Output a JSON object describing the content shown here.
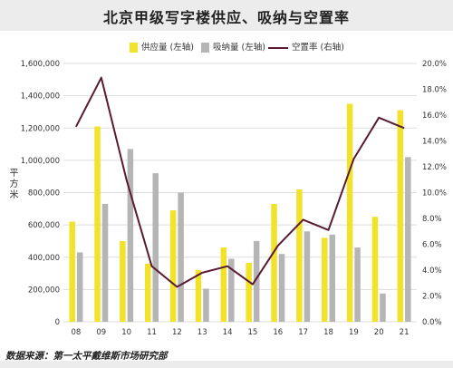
{
  "title": "北京甲级写字楼供应、吸纳与空置率",
  "source": "数据来源：第一太平戴维斯市场研究部",
  "colors": {
    "supply": "#f2e22a",
    "absorption": "#b5b5b5",
    "vacancy": "#5a1a33",
    "grid": "#dddddd",
    "axis_text": "#333333"
  },
  "chart_data": {
    "type": "bar+line",
    "title": "北京甲级写字楼供应、吸纳与空置率",
    "categories": [
      "08",
      "09",
      "10",
      "11",
      "12",
      "13",
      "14",
      "15",
      "16",
      "17",
      "18",
      "19",
      "20",
      "21"
    ],
    "ylabel": "平方米",
    "y_left": {
      "lim": [
        0,
        1600000
      ],
      "ticks": [
        0,
        200000,
        400000,
        600000,
        800000,
        1000000,
        1200000,
        1400000,
        1600000
      ],
      "tick_labels": [
        "0",
        "200,000",
        "400,000",
        "600,000",
        "800,000",
        "1,000,000",
        "1,200,000",
        "1,400,000",
        "1,600,000"
      ]
    },
    "y_right": {
      "lim": [
        0,
        20
      ],
      "ticks": [
        0,
        2,
        4,
        6,
        8,
        10,
        12,
        14,
        16,
        18,
        20
      ],
      "tick_labels": [
        "0.0%",
        "2.0%",
        "4.0%",
        "6.0%",
        "8.0%",
        "10.0%",
        "12.0%",
        "14.0%",
        "16.0%",
        "18.0%",
        "20.0%"
      ]
    },
    "grid": true,
    "legend_position": "top",
    "series": [
      {
        "name": "供应量 (左轴)",
        "kind": "bar",
        "axis": "left",
        "values": [
          620000,
          1210000,
          500000,
          360000,
          690000,
          320000,
          460000,
          365000,
          730000,
          820000,
          520000,
          1350000,
          650000,
          1310000
        ]
      },
      {
        "name": "吸纳量 (左轴)",
        "kind": "bar",
        "axis": "left",
        "values": [
          430000,
          730000,
          1070000,
          920000,
          800000,
          205000,
          390000,
          500000,
          420000,
          560000,
          540000,
          460000,
          175000,
          1020000
        ]
      },
      {
        "name": "空置率 (右轴)",
        "kind": "line",
        "axis": "right",
        "values": [
          15.1,
          18.9,
          11.0,
          4.3,
          2.7,
          3.8,
          4.3,
          2.9,
          5.9,
          7.9,
          7.1,
          12.6,
          15.8,
          15.0
        ]
      }
    ]
  }
}
